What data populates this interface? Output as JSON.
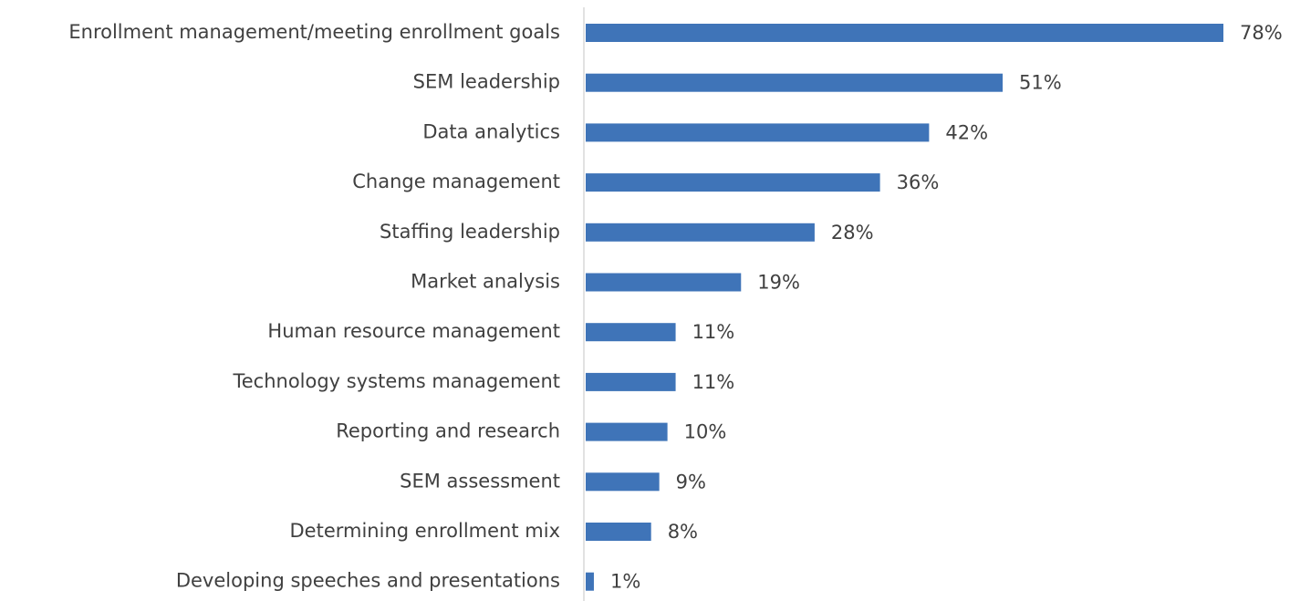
{
  "chart_data": {
    "type": "bar",
    "orientation": "horizontal",
    "categories": [
      "Enrollment management/meeting enrollment goals",
      "SEM leadership",
      "Data analytics",
      "Change management",
      "Staffing leadership",
      "Market analysis",
      "Human resource management",
      "Technology systems management",
      "Reporting and research",
      "SEM assessment",
      "Determining enrollment mix",
      "Developing speeches and presentations"
    ],
    "values": [
      78,
      51,
      42,
      36,
      28,
      19,
      11,
      11,
      10,
      9,
      8,
      1
    ],
    "value_labels": [
      "78%",
      "51%",
      "42%",
      "36%",
      "28%",
      "19%",
      "11%",
      "11%",
      "10%",
      "9%",
      "8%",
      "1%"
    ],
    "color": "#3f74b8"
  }
}
